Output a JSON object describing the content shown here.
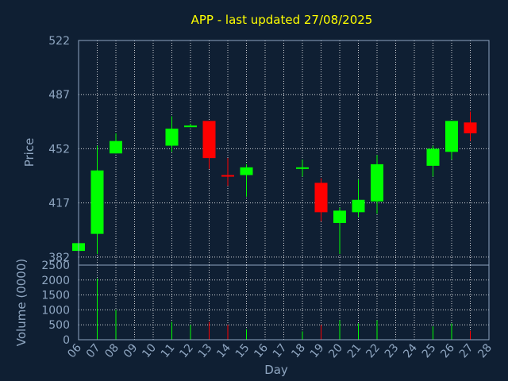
{
  "chart_data": {
    "type": "candlestick",
    "title": "APP - last updated 27/08/2025",
    "ylabel": "Price",
    "volume_label": "Volume (0000)",
    "xlabel": "Day",
    "price_ticks": [
      "522",
      "487",
      "452",
      "417",
      "382"
    ],
    "price_ylim": [
      376.8,
      522
    ],
    "volume_ticks": [
      "2500",
      "2000",
      "1500",
      "1000",
      "500",
      "0"
    ],
    "volume_ylim": [
      0,
      2500
    ],
    "x_ticks": [
      "06",
      "07",
      "08",
      "09",
      "10",
      "11",
      "12",
      "13",
      "14",
      "15",
      "16",
      "17",
      "18",
      "19",
      "20",
      "21",
      "22",
      "23",
      "24",
      "25",
      "26",
      "27",
      "28"
    ],
    "grid": true,
    "colors": {
      "up": "#00ff00",
      "down": "#ff0000",
      "background": "#0f1f33",
      "grid": "#ffffff",
      "axis": "#8fa6c1",
      "title": "#ffff00"
    },
    "candles": [
      {
        "day": "06",
        "open": 386,
        "high": 392,
        "low": 386,
        "close": 391,
        "volume": 60
      },
      {
        "day": "07",
        "open": 397,
        "high": 454,
        "low": 384,
        "close": 438,
        "volume": 2050
      },
      {
        "day": "08",
        "open": 449,
        "high": 462,
        "low": 449,
        "close": 457,
        "volume": 1000
      },
      {
        "day": "11",
        "open": 454,
        "high": 473,
        "low": 450,
        "close": 465,
        "volume": 600
      },
      {
        "day": "12",
        "open": 466,
        "high": 468,
        "low": 466,
        "close": 467,
        "volume": 500
      },
      {
        "day": "13",
        "open": 470,
        "high": 470,
        "low": 439,
        "close": 446,
        "volume": 600
      },
      {
        "day": "14",
        "open": 435,
        "high": 446,
        "low": 428,
        "close": 434,
        "volume": 500
      },
      {
        "day": "15",
        "open": 435,
        "high": 442,
        "low": 421,
        "close": 440,
        "volume": 350
      },
      {
        "day": "18",
        "open": 439,
        "high": 445,
        "low": 434,
        "close": 440,
        "volume": 280
      },
      {
        "day": "19",
        "open": 430,
        "high": 433,
        "low": 405,
        "close": 411,
        "volume": 500
      },
      {
        "day": "20",
        "open": 404,
        "high": 414,
        "low": 384,
        "close": 412,
        "volume": 650
      },
      {
        "day": "21",
        "open": 411,
        "high": 432,
        "low": 408,
        "close": 419,
        "volume": 550
      },
      {
        "day": "22",
        "open": 418,
        "high": 448,
        "low": 410,
        "close": 442,
        "volume": 650
      },
      {
        "day": "25",
        "open": 441,
        "high": 454,
        "low": 434,
        "close": 452,
        "volume": 450
      },
      {
        "day": "26",
        "open": 450,
        "high": 470,
        "low": 445,
        "close": 470,
        "volume": 550
      },
      {
        "day": "27",
        "open": 469,
        "high": 476,
        "low": 457,
        "close": 462,
        "volume": 300
      }
    ]
  }
}
